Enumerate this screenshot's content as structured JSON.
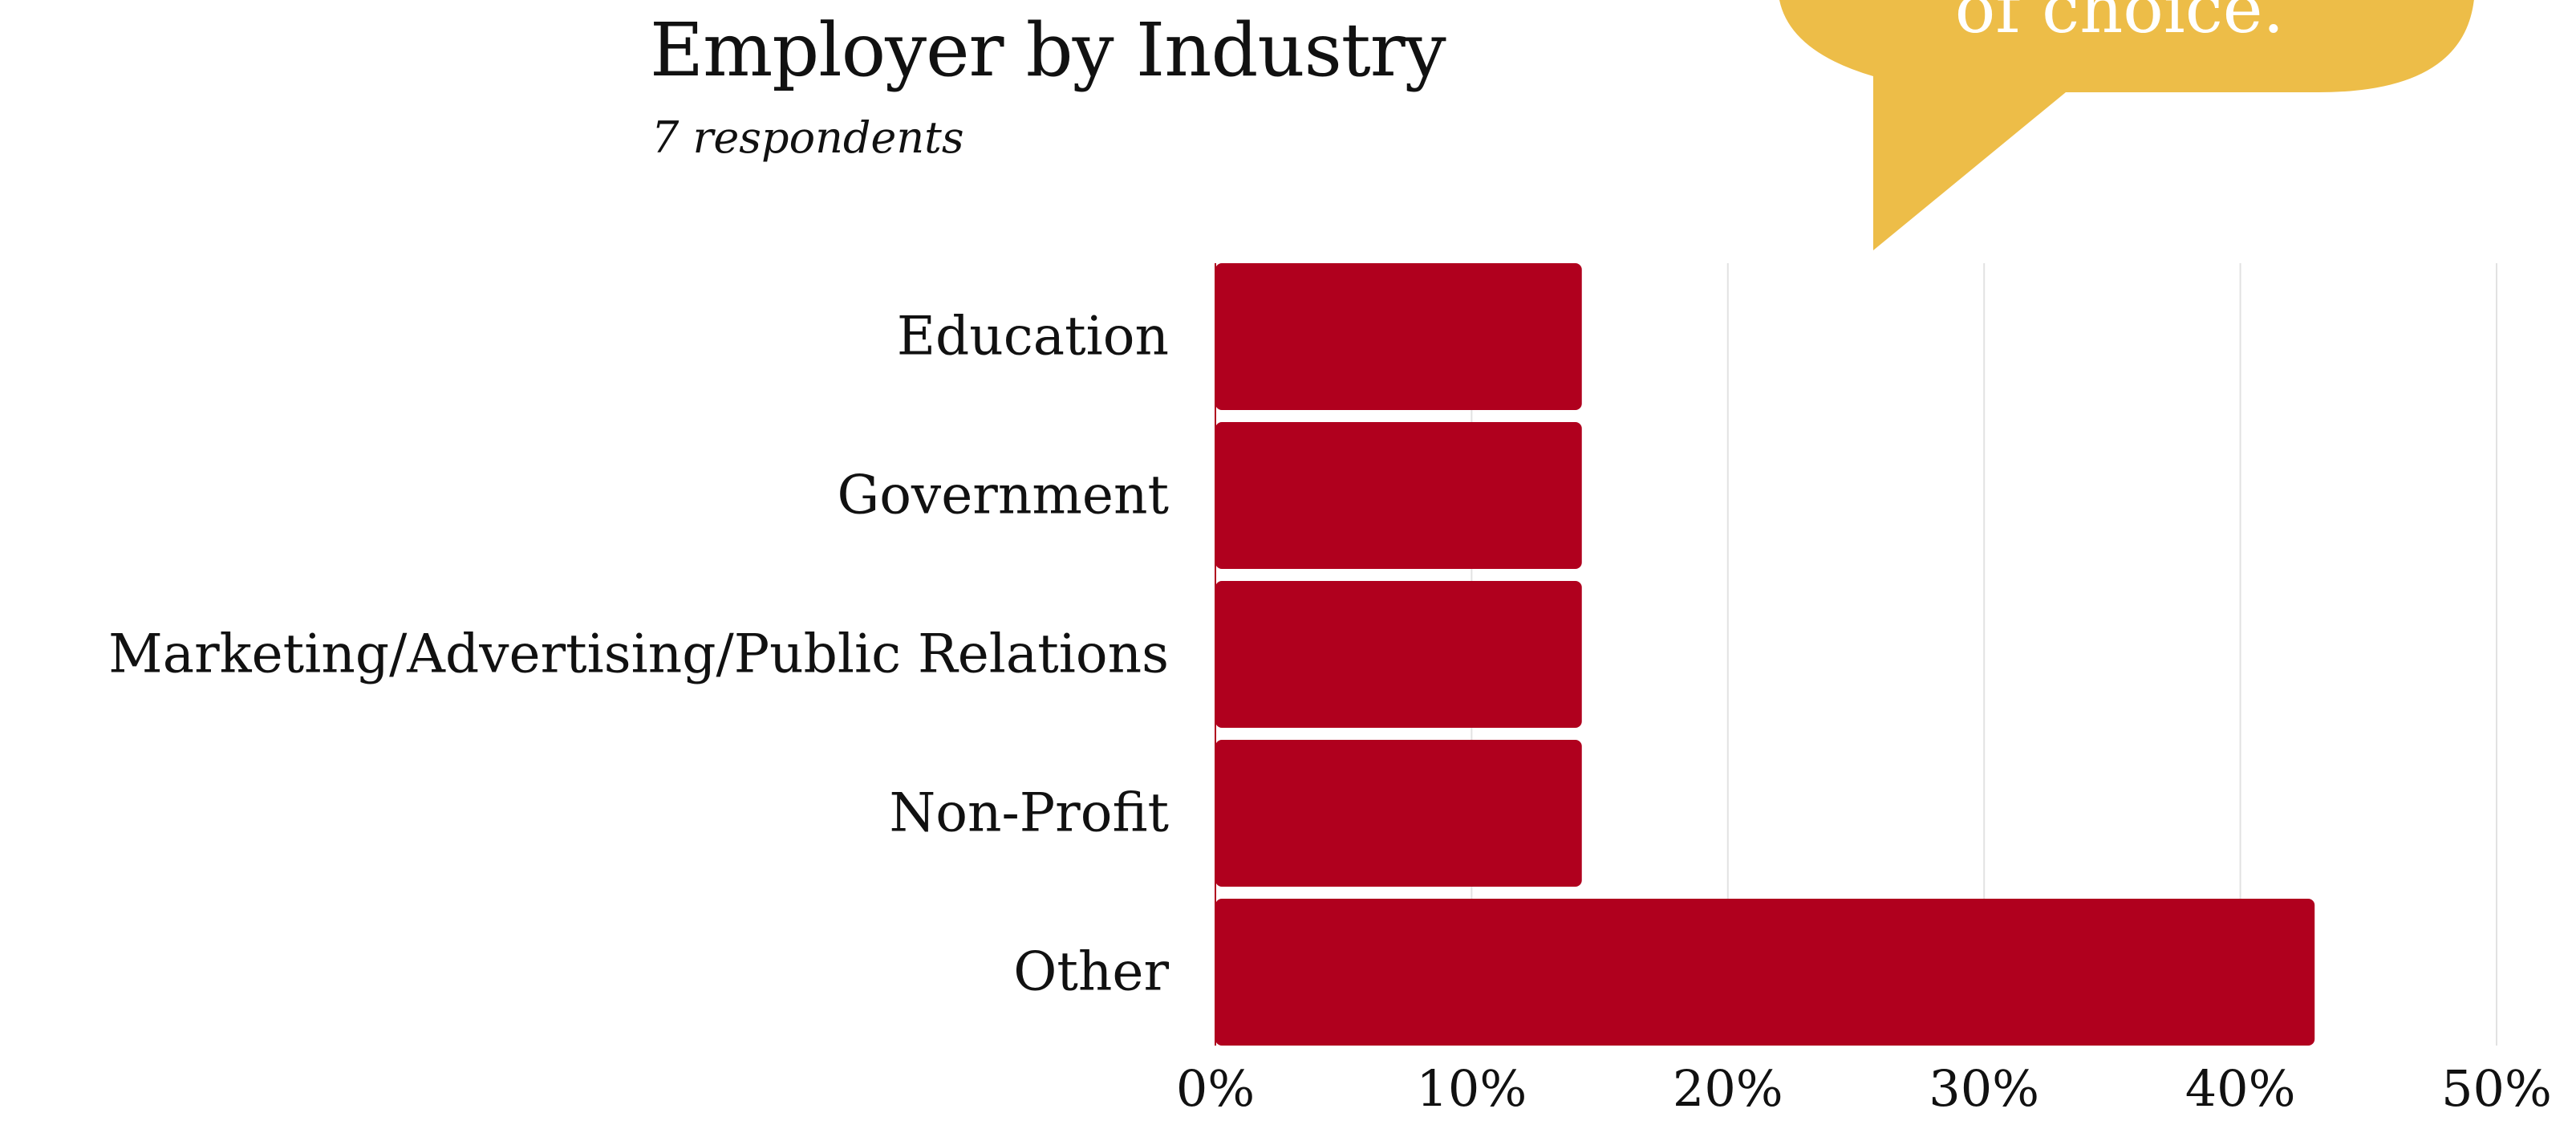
{
  "callout": {
    "text": "of choice.",
    "color": "#EDBD48"
  },
  "chart_data": {
    "type": "bar",
    "orientation": "horizontal",
    "title": "Employer  by Industry",
    "subtitle": "7 respondents",
    "categories": [
      "Education",
      "Government",
      "Marketing/Advertising/Public Relations",
      "Non-Profit",
      "Other"
    ],
    "values": [
      14.3,
      14.3,
      14.3,
      14.3,
      42.9
    ],
    "unit": "%",
    "xlim": [
      0,
      50
    ],
    "xticks": [
      "0%",
      "10%",
      "20%",
      "30%",
      "40%",
      "50%"
    ],
    "grid": true,
    "bar_color": "#B0001E",
    "grid_color": "#E2E2E2"
  }
}
